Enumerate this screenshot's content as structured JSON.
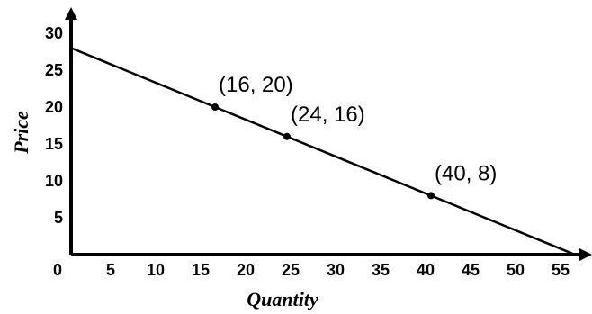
{
  "chart_data": {
    "type": "line",
    "title": "",
    "xlabel": "Quantity",
    "ylabel": "Price",
    "xlim": [
      0,
      55
    ],
    "ylim": [
      0,
      30
    ],
    "x_ticks": [
      "0",
      "5",
      "10",
      "15",
      "20",
      "25",
      "30",
      "35",
      "40",
      "45",
      "50",
      "55"
    ],
    "y_ticks": [
      "5",
      "10",
      "15",
      "20",
      "25",
      "30"
    ],
    "grid": false,
    "legend": "none",
    "series": [
      {
        "x": [
          0,
          56
        ],
        "y": [
          28,
          0
        ]
      }
    ],
    "points": [
      {
        "x": 16,
        "y": 20,
        "label": "(16, 20)"
      },
      {
        "x": 24,
        "y": 16,
        "label": "(24, 16)"
      },
      {
        "x": 40,
        "y": 8,
        "label": "(40, 8)"
      }
    ],
    "colors": {
      "line": "#000000",
      "axis": "#000000"
    }
  }
}
